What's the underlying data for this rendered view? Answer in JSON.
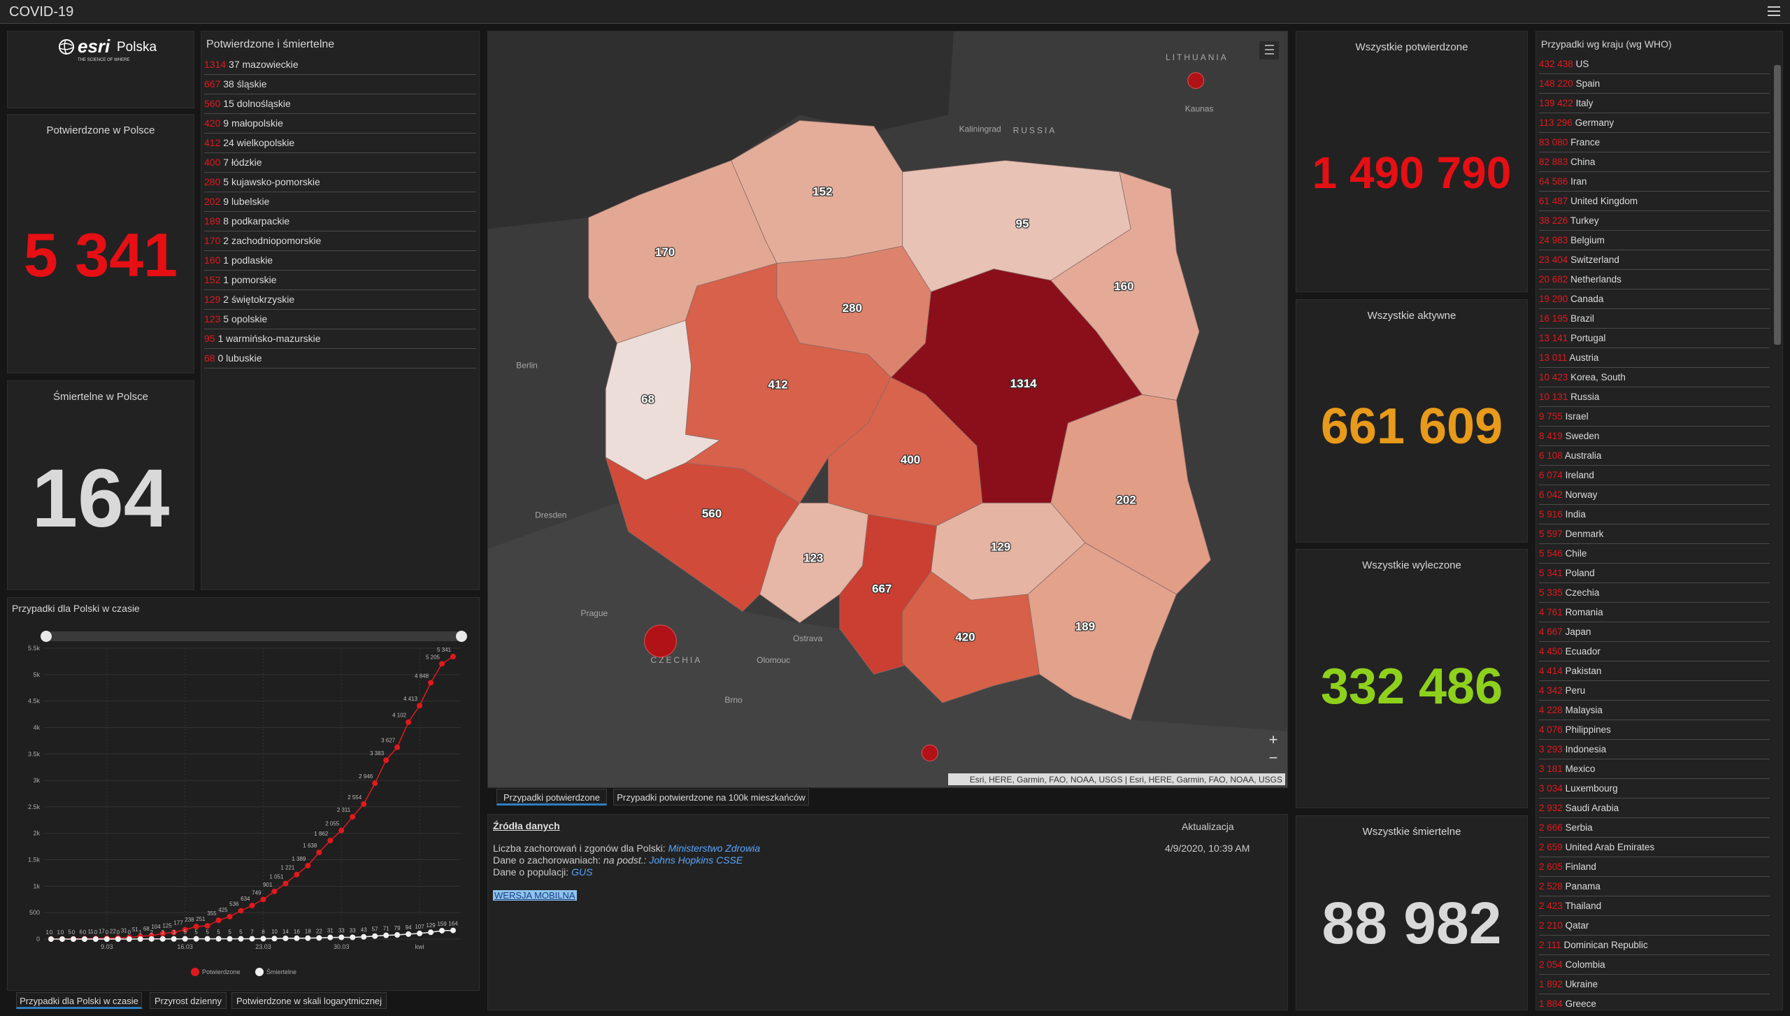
{
  "header": {
    "title": "COVID-19"
  },
  "logo": {
    "brand": "esri",
    "country": "Polska",
    "tagline": "THE SCIENCE OF WHERE"
  },
  "poland": {
    "confirmed": {
      "title": "Potwierdzone w Polsce",
      "value": "5 341"
    },
    "deaths": {
      "title": "Śmiertelne w Polsce",
      "value": "164"
    }
  },
  "voivodeships": {
    "title": "Potwierdzone i śmiertelne",
    "rows": [
      {
        "confirmed": 1314,
        "deaths": 37,
        "name": "mazowieckie"
      },
      {
        "confirmed": 667,
        "deaths": 38,
        "name": "śląskie"
      },
      {
        "confirmed": 560,
        "deaths": 15,
        "name": "dolnośląskie"
      },
      {
        "confirmed": 420,
        "deaths": 9,
        "name": "małopolskie"
      },
      {
        "confirmed": 412,
        "deaths": 24,
        "name": "wielkopolskie"
      },
      {
        "confirmed": 400,
        "deaths": 7,
        "name": "łódzkie"
      },
      {
        "confirmed": 280,
        "deaths": 5,
        "name": "kujawsko-pomorskie"
      },
      {
        "confirmed": 202,
        "deaths": 9,
        "name": "lubelskie"
      },
      {
        "confirmed": 189,
        "deaths": 8,
        "name": "podkarpackie"
      },
      {
        "confirmed": 170,
        "deaths": 2,
        "name": "zachodniopomorskie"
      },
      {
        "confirmed": 160,
        "deaths": 1,
        "name": "podlaskie"
      },
      {
        "confirmed": 152,
        "deaths": 1,
        "name": "pomorskie"
      },
      {
        "confirmed": 129,
        "deaths": 2,
        "name": "świętokrzyskie"
      },
      {
        "confirmed": 123,
        "deaths": 5,
        "name": "opolskie"
      },
      {
        "confirmed": 95,
        "deaths": 1,
        "name": "warmińsko-mazurskie"
      },
      {
        "confirmed": 68,
        "deaths": 0,
        "name": "lubuskie"
      }
    ]
  },
  "world": {
    "confirmed": {
      "title": "Wszystkie potwierdzone",
      "value": "1 490 790"
    },
    "active": {
      "title": "Wszystkie aktywne",
      "value": "661 609"
    },
    "recovered": {
      "title": "Wszystkie wyleczone",
      "value": "332 486"
    },
    "deaths": {
      "title": "Wszystkie śmiertelne",
      "value": "88 982"
    }
  },
  "countries": {
    "title": "Przypadki wg kraju (wg WHO)",
    "rows": [
      {
        "value": "432 438",
        "name": "US"
      },
      {
        "value": "148 220",
        "name": "Spain"
      },
      {
        "value": "139 422",
        "name": "Italy"
      },
      {
        "value": "113 296",
        "name": "Germany"
      },
      {
        "value": "83 080",
        "name": "France"
      },
      {
        "value": "82 883",
        "name": "China"
      },
      {
        "value": "64 586",
        "name": "Iran"
      },
      {
        "value": "61 487",
        "name": "United Kingdom"
      },
      {
        "value": "38 226",
        "name": "Turkey"
      },
      {
        "value": "24 983",
        "name": "Belgium"
      },
      {
        "value": "23 404",
        "name": "Switzerland"
      },
      {
        "value": "20 682",
        "name": "Netherlands"
      },
      {
        "value": "19 290",
        "name": "Canada"
      },
      {
        "value": "16 195",
        "name": "Brazil"
      },
      {
        "value": "13 141",
        "name": "Portugal"
      },
      {
        "value": "13 011",
        "name": "Austria"
      },
      {
        "value": "10 423",
        "name": "Korea, South"
      },
      {
        "value": "10 131",
        "name": "Russia"
      },
      {
        "value": "9 755",
        "name": "Israel"
      },
      {
        "value": "8 419",
        "name": "Sweden"
      },
      {
        "value": "6 108",
        "name": "Australia"
      },
      {
        "value": "6 074",
        "name": "Ireland"
      },
      {
        "value": "6 042",
        "name": "Norway"
      },
      {
        "value": "5 916",
        "name": "India"
      },
      {
        "value": "5 597",
        "name": "Denmark"
      },
      {
        "value": "5 546",
        "name": "Chile"
      },
      {
        "value": "5 341",
        "name": "Poland"
      },
      {
        "value": "5 335",
        "name": "Czechia"
      },
      {
        "value": "4 761",
        "name": "Romania"
      },
      {
        "value": "4 667",
        "name": "Japan"
      },
      {
        "value": "4 450",
        "name": "Ecuador"
      },
      {
        "value": "4 414",
        "name": "Pakistan"
      },
      {
        "value": "4 342",
        "name": "Peru"
      },
      {
        "value": "4 228",
        "name": "Malaysia"
      },
      {
        "value": "4 076",
        "name": "Philippines"
      },
      {
        "value": "3 293",
        "name": "Indonesia"
      },
      {
        "value": "3 181",
        "name": "Mexico"
      },
      {
        "value": "3 034",
        "name": "Luxembourg"
      },
      {
        "value": "2 932",
        "name": "Saudi Arabia"
      },
      {
        "value": "2 666",
        "name": "Serbia"
      },
      {
        "value": "2 659",
        "name": "United Arab Emirates"
      },
      {
        "value": "2 605",
        "name": "Finland"
      },
      {
        "value": "2 528",
        "name": "Panama"
      },
      {
        "value": "2 423",
        "name": "Thailand"
      },
      {
        "value": "2 210",
        "name": "Qatar"
      },
      {
        "value": "2 111",
        "name": "Dominican Republic"
      },
      {
        "value": "2 054",
        "name": "Colombia"
      },
      {
        "value": "1 892",
        "name": "Ukraine"
      },
      {
        "value": "1 884",
        "name": "Greece"
      }
    ]
  },
  "map": {
    "places": [
      "LITHUANIA",
      "Kaunas",
      "Kaliningrad",
      "RUSSIA",
      "Berlin",
      "Dresden",
      "Prague",
      "CZECHIA",
      "Ostrava",
      "Olomouc",
      "Brno"
    ],
    "zoom": [
      "+",
      "−"
    ],
    "attribution": "Esri, HERE, Garmin, FAO, NOAA, USGS | Esri, HERE, Garmin, FAO, NOAA, USGS",
    "tabs": [
      "Przypadki potwierdzone",
      "Przypadki potwierdzone na 100k mieszkańców"
    ]
  },
  "sources": {
    "title": "Źródła danych",
    "line1": {
      "text": "Liczba zachorowań i zgonów dla Polski:",
      "link": "Ministerstwo Zdrowia"
    },
    "line2": {
      "text": "Dane o zachorowaniach:",
      "note": "na podst.:",
      "link": "Johns Hopkins CSSE"
    },
    "line3": {
      "text": "Dane o populacji:",
      "link": "GUS"
    },
    "mobile": "WERSJA MOBILNA",
    "update_title": "Aktualizacja",
    "update": "4/9/2020, 10:39 AM"
  },
  "chart_data": {
    "type": "line",
    "title": "Przypadki dla Polski w czasie",
    "categories": [
      null,
      null,
      null,
      null,
      null,
      "9.03",
      null,
      null,
      null,
      null,
      null,
      null,
      "16.03",
      null,
      null,
      null,
      null,
      null,
      null,
      "23.03",
      null,
      null,
      null,
      null,
      null,
      null,
      "30.03",
      null,
      null,
      null,
      null,
      null,
      null,
      "kwi",
      null,
      null,
      null
    ],
    "series": [
      {
        "name": "Potwierdzone",
        "color": "#e0191e",
        "values": [
          1,
          1,
          5,
          6,
          11,
          17,
          22,
          31,
          51,
          68,
          104,
          125,
          177,
          238,
          251,
          355,
          425,
          536,
          634,
          749,
          901,
          1051,
          1221,
          1389,
          1638,
          1862,
          2055,
          2311,
          2554,
          2946,
          3383,
          3627,
          4102,
          4413,
          4848,
          5205,
          5341
        ],
        "value_labels": [
          "1",
          "1",
          "5",
          "6",
          "11",
          "17",
          "22",
          "31",
          "51",
          "68",
          "104",
          "125",
          "177",
          "238",
          "251",
          "355",
          "425",
          "536",
          "634",
          "749",
          "901",
          "1 051",
          "1 221",
          "1 389",
          "1 638",
          "1 862",
          "2 055",
          "2 311",
          "2 554",
          "2 946",
          "3 383",
          "3 627",
          "4 102",
          "4 413",
          "4 848",
          "5 205",
          "5 341"
        ]
      },
      {
        "name": "Śmiertelne",
        "color": "#f2f2f2",
        "values": [
          0,
          0,
          0,
          0,
          0,
          0,
          0,
          0,
          1,
          2,
          3,
          3,
          5,
          5,
          5,
          5,
          5,
          5,
          7,
          8,
          10,
          14,
          16,
          18,
          22,
          31,
          33,
          33,
          43,
          57,
          71,
          79,
          94,
          107,
          129,
          159,
          164
        ]
      }
    ],
    "ylim": [
      0,
      5500
    ],
    "yticks": [
      0,
      500,
      {
        "value": 1000,
        "label": "1k"
      },
      {
        "value": 1500,
        "label": "1.5k"
      },
      {
        "value": 2000,
        "label": "2k"
      },
      {
        "value": 2500,
        "label": "2.5k"
      },
      {
        "value": 3000,
        "label": "3k"
      },
      {
        "value": 3500,
        "label": "3.5k"
      },
      {
        "value": 4000,
        "label": "4k"
      },
      {
        "value": 4500,
        "label": "4.5k"
      },
      {
        "value": 5000,
        "label": "5k"
      },
      {
        "value": 5500,
        "label": "5.5k"
      }
    ],
    "grid": true,
    "legend": "bottom",
    "tabs": [
      "Przypadki dla Polski w czasie",
      "Przyrost dzienny",
      "Potwierdzone w skali logarytmicznej"
    ]
  }
}
